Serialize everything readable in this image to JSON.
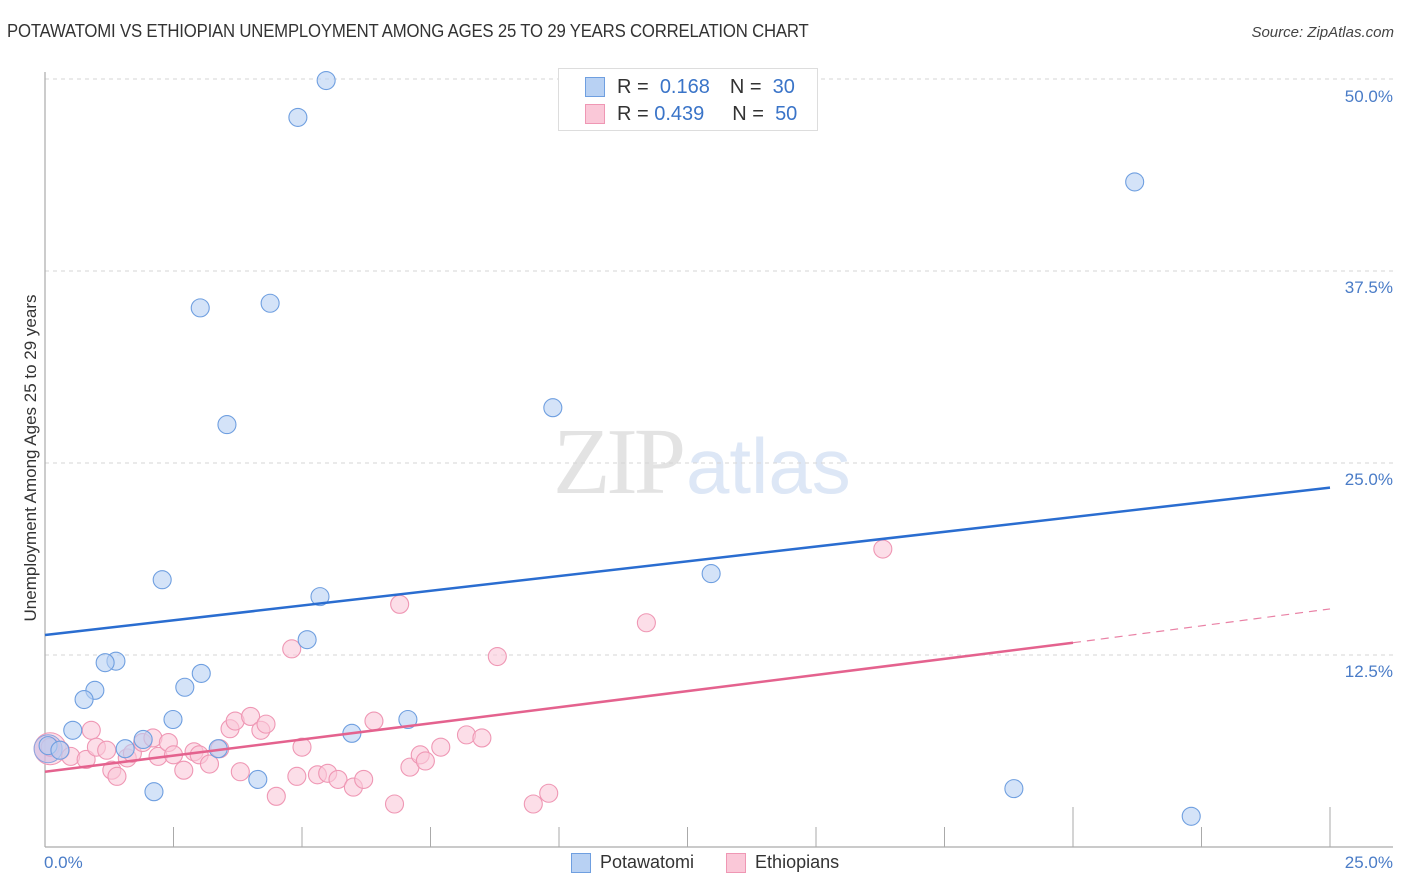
{
  "header": {
    "title": "POTAWATOMI VS ETHIOPIAN UNEMPLOYMENT AMONG AGES 25 TO 29 YEARS CORRELATION CHART",
    "source": "Source: ZipAtlas.com"
  },
  "watermark": {
    "zip": "ZIP",
    "atlas": "atlas"
  },
  "legend_top": {
    "rows": [
      {
        "r_label": "R =",
        "r_value": "0.168",
        "n_label": "N =",
        "n_value": "30",
        "color": "#b8d1f3",
        "border": "#6f9fe0"
      },
      {
        "r_label": "R =",
        "r_value": "0.439",
        "n_label": "N =",
        "n_value": "50",
        "color": "#fac8d8",
        "border": "#ef97b4"
      }
    ]
  },
  "legend_bottom": [
    {
      "label": "Potawatomi",
      "color": "#b8d1f3",
      "border": "#6f9fe0"
    },
    {
      "label": "Ethiopians",
      "color": "#fac8d8",
      "border": "#ef97b4"
    }
  ],
  "axes": {
    "ylabel": "Unemployment Among Ages 25 to 29 years",
    "y_ticks": [
      "50.0%",
      "37.5%",
      "25.0%",
      "12.5%"
    ],
    "x_ticks": [
      "0.0%",
      "25.0%"
    ]
  },
  "chart_data": {
    "type": "scatter",
    "title": "POTAWATOMI VS ETHIOPIAN UNEMPLOYMENT AMONG AGES 25 TO 29 YEARS CORRELATION CHART",
    "xlabel": "",
    "ylabel": "Unemployment Among Ages 25 to 29 years",
    "xlim": [
      0,
      25
    ],
    "ylim": [
      0,
      50
    ],
    "x_tick_labels": [
      "0.0%",
      "25.0%"
    ],
    "y_tick_labels": [
      "12.5%",
      "25.0%",
      "37.5%",
      "50.0%"
    ],
    "grid": "horizontal dashed",
    "legend_position": "top-center and bottom-center",
    "series": [
      {
        "name": "Potawatomi",
        "color": "#6f9fe0",
        "fill": "#b8d1f3",
        "R": 0.168,
        "N": 30,
        "trend": {
          "x": [
            0,
            25
          ],
          "y": [
            13.8,
            23.4
          ],
          "style": "solid",
          "color": "#2a6dd0"
        },
        "points": [
          [
            5.47,
            49.9
          ],
          [
            4.92,
            47.5
          ],
          [
            21.2,
            43.3
          ],
          [
            4.38,
            35.4
          ],
          [
            3.02,
            35.1
          ],
          [
            3.54,
            27.5
          ],
          [
            9.88,
            28.6
          ],
          [
            2.28,
            17.4
          ],
          [
            12.96,
            17.8
          ],
          [
            5.35,
            16.3
          ],
          [
            5.1,
            13.5
          ],
          [
            1.38,
            12.1
          ],
          [
            1.17,
            12.0
          ],
          [
            3.04,
            11.3
          ],
          [
            0.97,
            10.2
          ],
          [
            2.72,
            10.4
          ],
          [
            0.76,
            9.6
          ],
          [
            2.49,
            8.3
          ],
          [
            7.06,
            8.3
          ],
          [
            0.54,
            7.6
          ],
          [
            5.97,
            7.4
          ],
          [
            1.91,
            7.0
          ],
          [
            1.56,
            6.4
          ],
          [
            0.06,
            6.6
          ],
          [
            0.29,
            6.3
          ],
          [
            3.37,
            6.4
          ],
          [
            4.14,
            4.4
          ],
          [
            2.12,
            3.6
          ],
          [
            18.85,
            3.8
          ],
          [
            22.3,
            2.0
          ]
        ]
      },
      {
        "name": "Ethiopians",
        "color": "#ef97b4",
        "fill": "#fac8d8",
        "R": 0.439,
        "N": 50,
        "trend": {
          "x": [
            0,
            20,
            25
          ],
          "y": [
            4.9,
            13.3,
            15.5
          ],
          "style": "solid to 20%, dashed beyond",
          "color": "#e4628e"
        },
        "points": [
          [
            0.1,
            6.5
          ],
          [
            0.3,
            6.3
          ],
          [
            0.5,
            5.9
          ],
          [
            0.8,
            5.7
          ],
          [
            0.9,
            7.6
          ],
          [
            1.0,
            6.5
          ],
          [
            1.2,
            6.3
          ],
          [
            1.3,
            5.0
          ],
          [
            1.4,
            4.6
          ],
          [
            1.6,
            5.8
          ],
          [
            1.7,
            6.1
          ],
          [
            1.9,
            6.8
          ],
          [
            2.1,
            7.1
          ],
          [
            2.2,
            5.9
          ],
          [
            2.4,
            6.8
          ],
          [
            2.5,
            6.0
          ],
          [
            2.7,
            5.0
          ],
          [
            2.9,
            6.2
          ],
          [
            3.0,
            6.0
          ],
          [
            3.2,
            5.4
          ],
          [
            3.4,
            6.4
          ],
          [
            3.6,
            7.7
          ],
          [
            3.7,
            8.2
          ],
          [
            3.8,
            4.9
          ],
          [
            4.0,
            8.5
          ],
          [
            4.2,
            7.6
          ],
          [
            4.3,
            8.0
          ],
          [
            4.5,
            3.3
          ],
          [
            4.8,
            12.9
          ],
          [
            4.9,
            4.6
          ],
          [
            5.0,
            6.5
          ],
          [
            5.3,
            4.7
          ],
          [
            5.5,
            4.8
          ],
          [
            5.7,
            4.4
          ],
          [
            6.0,
            3.9
          ],
          [
            6.2,
            4.4
          ],
          [
            6.4,
            8.2
          ],
          [
            6.8,
            2.8
          ],
          [
            6.9,
            15.8
          ],
          [
            7.1,
            5.2
          ],
          [
            7.3,
            6.0
          ],
          [
            7.4,
            5.6
          ],
          [
            7.7,
            6.5
          ],
          [
            8.2,
            7.3
          ],
          [
            8.5,
            7.1
          ],
          [
            8.8,
            12.4
          ],
          [
            9.5,
            2.8
          ],
          [
            9.8,
            3.5
          ],
          [
            11.7,
            14.6
          ],
          [
            16.3,
            19.4
          ]
        ]
      }
    ]
  }
}
